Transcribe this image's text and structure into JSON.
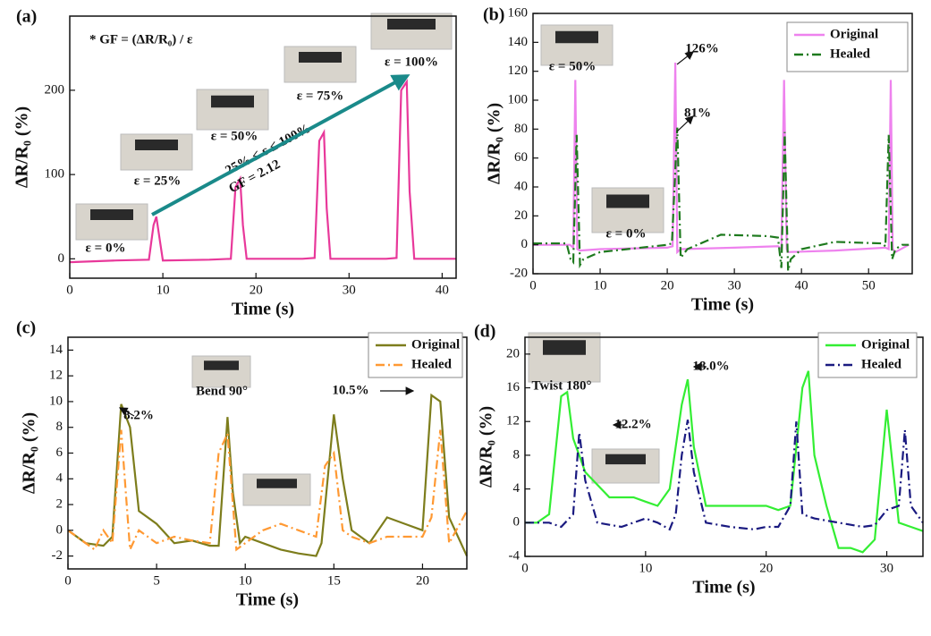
{
  "chart_data": [
    {
      "type": "line",
      "panel_label": "(a)",
      "xlabel": "Time (s)",
      "ylabel": "ΔR/R₀ (%)",
      "xlim": [
        0,
        41.5
      ],
      "xticks": [
        0,
        10,
        20,
        30,
        40
      ],
      "ylim": [
        -23,
        288
      ],
      "yticks": [
        0,
        100,
        200
      ],
      "series": [
        {
          "color": "#e8389a",
          "style": "solid",
          "x": [
            0,
            5,
            8.5,
            9,
            9.3,
            9.7,
            10,
            15,
            17.3,
            17.8,
            18.3,
            18.6,
            19,
            25,
            26.3,
            26.8,
            27.3,
            27.6,
            28,
            34,
            35.1,
            35.6,
            36.2,
            36.5,
            37,
            41.5
          ],
          "values": [
            -4,
            -2,
            -1,
            40,
            50,
            20,
            -2,
            -1,
            0,
            85,
            95,
            40,
            0,
            0,
            1,
            140,
            150,
            60,
            0,
            0,
            1,
            200,
            210,
            80,
            0,
            0
          ]
        }
      ],
      "annotations": [
        "* GF = (ΔR/R₀) / ε",
        "25% ≤ ε ≤ 100%",
        "GF = 2.12",
        "ε = 0%",
        "ε = 25%",
        "ε = 50%",
        "ε = 75%",
        "ε = 100%"
      ]
    },
    {
      "type": "line",
      "panel_label": "(b)",
      "xlabel": "Time (s)",
      "ylabel": "ΔR/R₀ (%)",
      "xlim": [
        0,
        56.5
      ],
      "xticks": [
        0,
        10,
        20,
        30,
        40,
        50
      ],
      "ylim": [
        -20,
        160
      ],
      "yticks": [
        -20,
        0,
        20,
        40,
        60,
        80,
        100,
        120,
        140,
        160
      ],
      "series": [
        {
          "name": "Original",
          "color": "#ee82ee",
          "style": "solid",
          "x": [
            0,
            5.5,
            6,
            6.3,
            6.6,
            7,
            10,
            20,
            20.8,
            21.2,
            21.5,
            22,
            30,
            36.5,
            37,
            37.4,
            37.8,
            38,
            45,
            52.5,
            53,
            53.3,
            53.6,
            54,
            56
          ],
          "values": [
            0,
            0,
            -2,
            114,
            -3,
            -4,
            -3,
            -2,
            -1,
            126,
            -5,
            -3,
            -2,
            -1,
            -3,
            114,
            -3,
            -5,
            -4,
            -2,
            -3,
            114,
            -3,
            -5,
            0
          ]
        },
        {
          "name": "Healed",
          "color": "#1e7a1e",
          "style": "dashdot",
          "x": [
            0,
            5,
            5.6,
            6,
            6.5,
            7,
            7.5,
            10,
            20,
            20.7,
            21.5,
            22,
            23,
            28,
            35,
            36.5,
            37,
            37.5,
            38,
            38.4,
            40,
            45,
            52,
            52.5,
            53,
            53.5,
            54,
            55,
            56
          ],
          "values": [
            1,
            1,
            -10,
            -12,
            76,
            -14,
            -10,
            -5,
            0,
            1,
            81,
            -9,
            -3,
            7,
            6,
            5,
            -16,
            78,
            -18,
            -10,
            -3,
            2,
            1,
            -1,
            76,
            -10,
            -3,
            0,
            0
          ]
        }
      ],
      "annotations": [
        "126%",
        "81%",
        "ε = 50%",
        "ε = 0%"
      ]
    },
    {
      "type": "line",
      "panel_label": "(c)",
      "xlabel": "Time (s)",
      "ylabel": "ΔR/R₀ (%)",
      "xlim": [
        0,
        22.5
      ],
      "xticks": [
        0,
        5,
        10,
        15,
        20
      ],
      "ylim": [
        -3,
        15
      ],
      "yticks": [
        -2,
        0,
        2,
        4,
        6,
        8,
        10,
        12,
        14
      ],
      "series": [
        {
          "name": "Original",
          "color": "#7d7d1c",
          "style": "solid",
          "x": [
            0,
            1,
            2,
            2.5,
            3,
            3.5,
            4,
            5,
            6,
            7,
            8,
            8.5,
            9,
            9.3,
            9.7,
            10,
            11,
            12,
            13,
            14,
            14.3,
            15,
            15.5,
            16,
            17,
            18,
            19,
            20,
            20.5,
            21,
            21.5,
            22.5
          ],
          "values": [
            0,
            -1,
            -1.2,
            -0.5,
            9.8,
            8,
            1.5,
            0.5,
            -1,
            -0.8,
            -1.2,
            -1.2,
            8.8,
            3,
            -1,
            -0.5,
            -1,
            -1.5,
            -1.8,
            -2,
            -1,
            9,
            4,
            0,
            -1,
            1,
            0.5,
            0,
            10.5,
            10,
            1,
            -2
          ]
        },
        {
          "name": "Healed",
          "color": "#ff9933",
          "style": "dashdot",
          "x": [
            0,
            1,
            1.5,
            2,
            2.5,
            3,
            3.5,
            4,
            5,
            6,
            7,
            8,
            8.5,
            9,
            9.5,
            10,
            11,
            12,
            13,
            14,
            14.5,
            15,
            15.5,
            16,
            17,
            18,
            19,
            20,
            20.5,
            21,
            21.5,
            22.5
          ],
          "values": [
            0,
            -1,
            -1.5,
            0,
            -1,
            7.8,
            -1.5,
            0,
            -1,
            -0.5,
            -0.8,
            -1,
            6,
            7.5,
            -1.5,
            -1,
            0,
            0.5,
            0,
            -0.5,
            5,
            6,
            0,
            -0.5,
            -1,
            -0.5,
            -0.5,
            -0.5,
            1,
            7.8,
            -1,
            1.5
          ]
        }
      ],
      "annotations": [
        "8.2%",
        "Bend 90°",
        "10.5%"
      ]
    },
    {
      "type": "line",
      "panel_label": "(d)",
      "xlabel": "Time (s)",
      "ylabel": "ΔR/R₀ (%)",
      "xlim": [
        0,
        33
      ],
      "xticks": [
        0,
        10,
        20,
        30
      ],
      "ylim": [
        -4,
        22
      ],
      "yticks": [
        -4,
        0,
        4,
        8,
        12,
        16,
        20
      ],
      "series": [
        {
          "name": "Original",
          "color": "#33ee33",
          "style": "solid",
          "x": [
            0,
            1,
            2,
            3,
            3.5,
            4,
            5,
            7,
            9,
            10,
            11,
            12,
            13,
            13.5,
            14,
            15,
            17,
            19,
            20,
            21,
            22,
            23,
            23.5,
            24,
            25,
            26,
            27,
            28,
            29,
            30,
            31,
            32,
            33
          ],
          "values": [
            0,
            0,
            1,
            15,
            15.5,
            10,
            6,
            3,
            3,
            2.5,
            2,
            4,
            14,
            17,
            9,
            2,
            2,
            2,
            2,
            1.5,
            2,
            16,
            18,
            8,
            2,
            -3,
            -3,
            -3.5,
            -2,
            13.4,
            0,
            -0.5,
            -1
          ]
        },
        {
          "name": "Healed",
          "color": "#1a1a80",
          "style": "dashdot",
          "x": [
            0,
            1,
            2,
            3,
            4,
            4.5,
            5,
            6,
            8,
            10,
            11,
            12,
            12.5,
            13,
            13.5,
            14,
            15,
            17,
            19,
            20,
            21,
            22,
            22.5,
            23,
            24,
            26,
            28,
            29,
            30,
            31,
            31.5,
            32,
            33
          ],
          "values": [
            0,
            0,
            0,
            -0.5,
            1,
            10.7,
            5,
            0,
            -0.5,
            0.5,
            0,
            -0.8,
            1,
            8,
            12.2,
            6,
            0,
            -0.5,
            -0.8,
            -0.5,
            -0.5,
            2,
            12,
            1,
            0.5,
            0,
            -0.5,
            -0.3,
            1.5,
            2,
            11,
            2,
            0
          ]
        }
      ],
      "annotations": [
        "Twist 180°",
        "18.0%",
        "12.2%"
      ]
    }
  ]
}
